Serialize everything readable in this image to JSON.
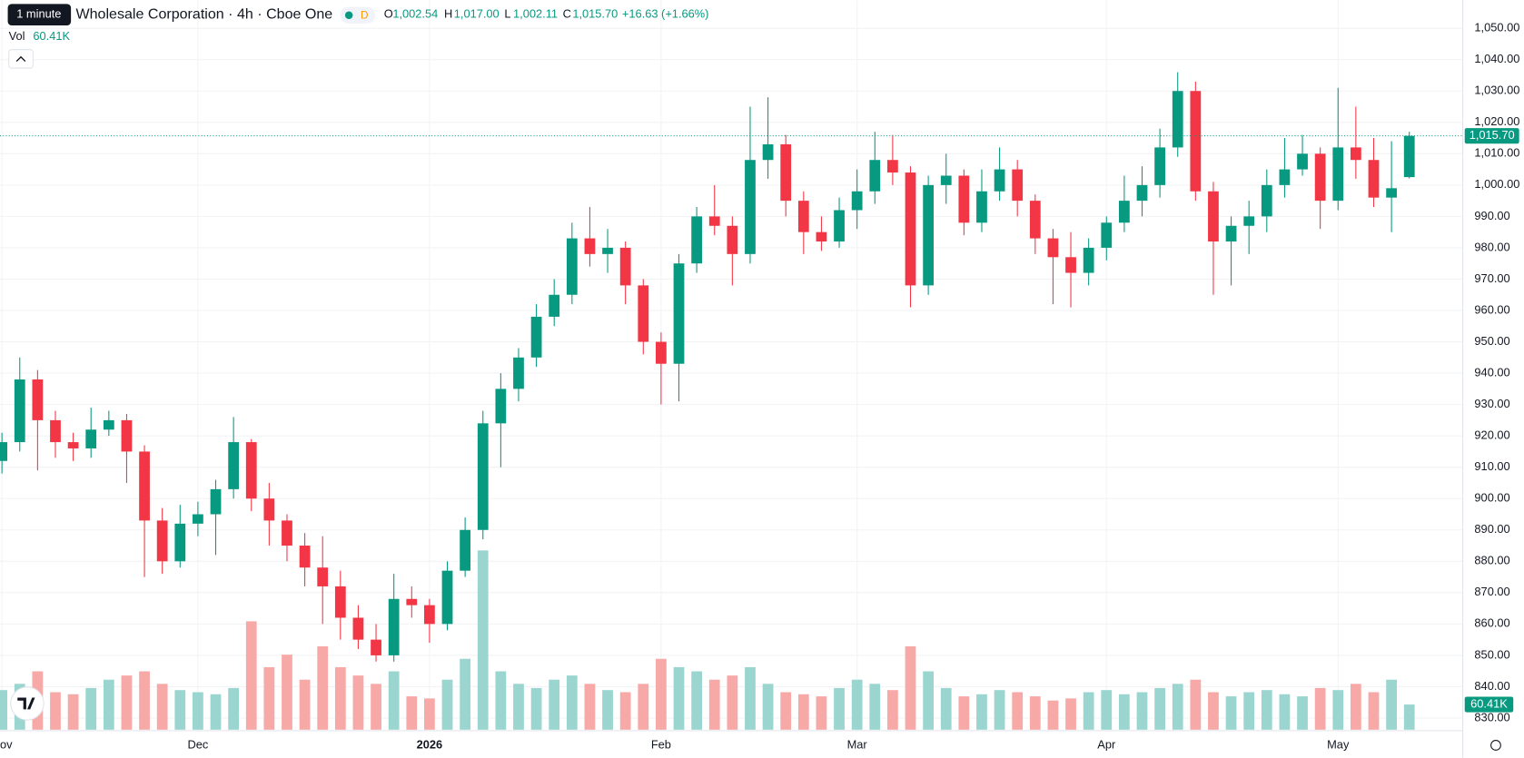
{
  "header": {
    "interval_tooltip": "1 minute",
    "symbol": "Wholesale Corporation · 4h · Cboe One",
    "badge": "D",
    "o_label": "O",
    "o": "1,002.54",
    "h_label": "H",
    "h": "1,017.00",
    "l_label": "L",
    "l": "1,002.11",
    "c_label": "C",
    "c": "1,015.70",
    "change": "+16.63 (+1.66%)",
    "vol_label": "Vol",
    "vol": "60.41K"
  },
  "chart_data": {
    "type": "candlestick",
    "up_color": "#089981",
    "down_color": "#f23645",
    "volume_up_color": "#9ad6cf",
    "volume_down_color": "#f7a9a7",
    "categories": [
      "Nov",
      null,
      null,
      null,
      null,
      null,
      null,
      null,
      null,
      null,
      null,
      "Dec",
      null,
      null,
      null,
      null,
      null,
      null,
      null,
      null,
      null,
      null,
      null,
      null,
      "2026",
      null,
      null,
      null,
      null,
      null,
      null,
      null,
      null,
      null,
      null,
      null,
      null,
      "Feb",
      null,
      null,
      null,
      null,
      null,
      null,
      null,
      null,
      null,
      null,
      "Mar",
      null,
      null,
      null,
      null,
      null,
      null,
      null,
      null,
      null,
      null,
      null,
      null,
      null,
      "Apr",
      null,
      null,
      null,
      null,
      null,
      null,
      null,
      null,
      null,
      null,
      null,
      null,
      "May",
      null,
      null,
      null,
      null
    ],
    "open": [
      912,
      918,
      938,
      925,
      918,
      916,
      922,
      925,
      915,
      893,
      880,
      892,
      895,
      903,
      918,
      900,
      893,
      885,
      878,
      872,
      862,
      855,
      850,
      868,
      866,
      860,
      877,
      890,
      924,
      935,
      945,
      958,
      965,
      983,
      978,
      980,
      968,
      950,
      943,
      975,
      990,
      987,
      978,
      1008,
      1013,
      995,
      985,
      982,
      992,
      998,
      1008,
      1004,
      968,
      1000,
      1003,
      988,
      998,
      1005,
      995,
      983,
      977,
      972,
      980,
      988,
      995,
      1000,
      1012,
      1030,
      998,
      982,
      987,
      990,
      1000,
      1005,
      1010,
      995,
      1012,
      1008,
      996,
      1002.54
    ],
    "high": [
      921,
      945,
      941,
      928,
      921,
      929,
      928,
      927,
      917,
      897,
      898,
      899,
      906,
      926,
      919,
      905,
      895,
      889,
      888,
      877,
      866,
      860,
      876,
      872,
      868,
      880,
      894,
      928,
      940,
      948,
      962,
      970,
      988,
      993,
      986,
      982,
      970,
      953,
      978,
      993,
      1000,
      990,
      1025,
      1028,
      1016,
      998,
      990,
      996,
      1005,
      1017,
      1016,
      1006,
      1003,
      1010,
      1005,
      1005,
      1012,
      1008,
      997,
      986,
      985,
      983,
      990,
      1003,
      1006,
      1018,
      1036,
      1033,
      1001,
      990,
      995,
      1005,
      1015,
      1016,
      1012,
      1031,
      1025,
      1015,
      1014,
      1017
    ],
    "low": [
      908,
      915,
      909,
      913,
      912,
      913,
      920,
      905,
      875,
      876,
      878,
      888,
      882,
      900,
      896,
      885,
      880,
      872,
      860,
      855,
      852,
      848,
      848,
      862,
      854,
      858,
      875,
      887,
      910,
      931,
      942,
      955,
      962,
      974,
      972,
      962,
      946,
      930,
      931,
      972,
      984,
      968,
      975,
      1002,
      990,
      978,
      979,
      980,
      986,
      994,
      1000,
      961,
      965,
      994,
      984,
      985,
      995,
      990,
      978,
      962,
      961,
      968,
      976,
      985,
      990,
      996,
      1009,
      995,
      965,
      968,
      978,
      985,
      996,
      1003,
      986,
      992,
      1002,
      993,
      985,
      1002.11
    ],
    "close": [
      918,
      938,
      925,
      918,
      916,
      922,
      925,
      915,
      893,
      880,
      892,
      895,
      903,
      918,
      900,
      893,
      885,
      878,
      872,
      862,
      855,
      850,
      868,
      866,
      860,
      877,
      890,
      924,
      935,
      945,
      958,
      965,
      983,
      978,
      980,
      968,
      950,
      943,
      975,
      990,
      987,
      978,
      1008,
      1013,
      995,
      985,
      982,
      992,
      998,
      1008,
      1004,
      968,
      1000,
      1003,
      988,
      998,
      1005,
      995,
      983,
      977,
      972,
      980,
      988,
      995,
      1000,
      1012,
      1030,
      998,
      982,
      987,
      990,
      1000,
      1005,
      1010,
      995,
      1012,
      1008,
      996,
      999,
      1015.7
    ],
    "volume": [
      95,
      110,
      140,
      90,
      85,
      100,
      120,
      130,
      140,
      110,
      95,
      90,
      85,
      100,
      260,
      150,
      180,
      120,
      200,
      150,
      130,
      110,
      140,
      80,
      75,
      120,
      170,
      430,
      140,
      110,
      100,
      120,
      130,
      110,
      95,
      90,
      110,
      170,
      150,
      140,
      120,
      130,
      150,
      110,
      90,
      85,
      80,
      100,
      120,
      110,
      95,
      200,
      140,
      100,
      80,
      85,
      95,
      90,
      80,
      70,
      75,
      90,
      95,
      85,
      90,
      100,
      110,
      120,
      90,
      80,
      90,
      95,
      85,
      80,
      100,
      95,
      110,
      90,
      120,
      60.41
    ],
    "ylim": [
      830,
      1050
    ],
    "volume_ylim": [
      0,
      1750
    ],
    "yticks": [
      {
        "value": 830,
        "label": "830.00"
      },
      {
        "value": 840,
        "label": "840.00"
      },
      {
        "value": 850,
        "label": "850.00"
      },
      {
        "value": 860,
        "label": "860.00"
      },
      {
        "value": 870,
        "label": "870.00"
      },
      {
        "value": 880,
        "label": "880.00"
      },
      {
        "value": 890,
        "label": "890.00"
      },
      {
        "value": 900,
        "label": "900.00"
      },
      {
        "value": 910,
        "label": "910.00"
      },
      {
        "value": 920,
        "label": "920.00"
      },
      {
        "value": 930,
        "label": "930.00"
      },
      {
        "value": 940,
        "label": "940.00"
      },
      {
        "value": 950,
        "label": "950.00"
      },
      {
        "value": 960,
        "label": "960.00"
      },
      {
        "value": 970,
        "label": "970.00"
      },
      {
        "value": 980,
        "label": "980.00"
      },
      {
        "value": 990,
        "label": "990.00"
      },
      {
        "value": 1000,
        "label": "1,000.00"
      },
      {
        "value": 1010,
        "label": "1,010.00"
      },
      {
        "value": 1020,
        "label": "1,020.00"
      },
      {
        "value": 1030,
        "label": "1,030.00"
      },
      {
        "value": 1040,
        "label": "1,040.00"
      },
      {
        "value": 1050,
        "label": "1,050.00"
      }
    ],
    "last_price_label": "1,015.70",
    "last_volume_label": "60.41K",
    "grid": true
  }
}
